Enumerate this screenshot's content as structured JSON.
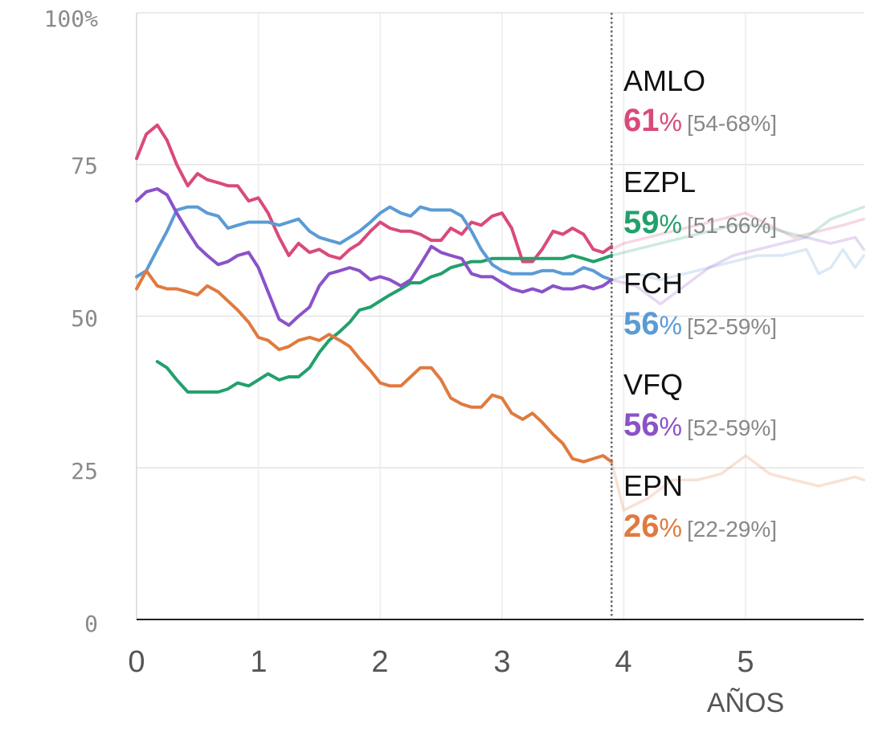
{
  "chart_data": {
    "type": "line",
    "xlabel": "AÑOS",
    "ylabel": "",
    "xlim": [
      0,
      6
    ],
    "ylim": [
      0,
      100
    ],
    "x_ticks": [
      "0",
      "1",
      "2",
      "3",
      "4",
      "5"
    ],
    "y_ticks": [
      "0",
      "25",
      "50",
      "75",
      "100%"
    ],
    "grid": true,
    "divider_x": 3.9,
    "series": [
      {
        "name": "AMLO",
        "color": "#d94a7a",
        "value": "61",
        "unit": "%",
        "range": "[54-68%]",
        "x": [
          0,
          0.08,
          0.17,
          0.25,
          0.33,
          0.42,
          0.5,
          0.58,
          0.67,
          0.75,
          0.83,
          0.92,
          1.0,
          1.08,
          1.17,
          1.25,
          1.33,
          1.42,
          1.5,
          1.58,
          1.67,
          1.75,
          1.83,
          1.92,
          2.0,
          2.08,
          2.17,
          2.25,
          2.33,
          2.42,
          2.5,
          2.58,
          2.67,
          2.75,
          2.83,
          2.92,
          3.0,
          3.08,
          3.17,
          3.25,
          3.33,
          3.42,
          3.5,
          3.58,
          3.67,
          3.75,
          3.83,
          3.9
        ],
        "y": [
          76,
          80,
          81.5,
          79,
          75,
          71.5,
          73.5,
          72.5,
          72,
          71.5,
          71.5,
          69,
          69.5,
          67,
          63,
          60,
          62,
          60.5,
          61,
          60,
          59.5,
          61,
          62,
          64,
          65.5,
          64.5,
          64,
          64,
          63.5,
          62.5,
          62.5,
          64.5,
          63.5,
          65.5,
          65,
          66.5,
          67,
          64.5,
          59,
          59,
          61,
          64,
          63.5,
          64.5,
          63.5,
          61,
          60.5,
          61.5
        ],
        "x_proj": [
          3.9,
          4.0,
          4.2,
          4.4,
          4.6,
          4.8,
          5.0,
          5.2,
          5.4,
          5.6,
          5.8,
          5.97
        ],
        "y_proj": [
          61,
          62,
          63,
          64,
          65,
          66,
          67,
          65,
          63,
          64,
          65,
          66
        ]
      },
      {
        "name": "EZPL",
        "color": "#22a06b",
        "value": "59",
        "unit": "%",
        "range": "[51-66%]",
        "x": [
          0.17,
          0.25,
          0.33,
          0.42,
          0.5,
          0.58,
          0.67,
          0.75,
          0.83,
          0.92,
          1.0,
          1.08,
          1.17,
          1.25,
          1.33,
          1.42,
          1.5,
          1.58,
          1.67,
          1.75,
          1.83,
          1.92,
          2.0,
          2.08,
          2.17,
          2.25,
          2.33,
          2.42,
          2.5,
          2.58,
          2.67,
          2.75,
          2.83,
          2.92,
          3.0,
          3.08,
          3.17,
          3.25,
          3.33,
          3.42,
          3.5,
          3.58,
          3.67,
          3.75,
          3.83,
          3.9
        ],
        "y": [
          42.5,
          41.5,
          39.5,
          37.5,
          37.5,
          37.5,
          37.5,
          38,
          39,
          38.5,
          39.5,
          40.5,
          39.5,
          40,
          40,
          41.5,
          44,
          46,
          47.5,
          49,
          51,
          51.5,
          52.5,
          53.5,
          54.5,
          55.5,
          55.5,
          56.5,
          57,
          58,
          58.5,
          59,
          59,
          59.5,
          59.5,
          59.5,
          59.5,
          59.5,
          59.5,
          59.5,
          59.5,
          60,
          59.5,
          59,
          59.5,
          60
        ],
        "x_proj": [
          3.9,
          4.1,
          4.3,
          4.5,
          4.7,
          4.9,
          5.1,
          5.3,
          5.5,
          5.7,
          5.97
        ],
        "y_proj": [
          60,
          61,
          62,
          63,
          64,
          65,
          65,
          64,
          63,
          66,
          68
        ]
      },
      {
        "name": "FCH",
        "color": "#5b9bd5",
        "value": "56",
        "unit": "%",
        "range": "[52-59%]",
        "x": [
          0,
          0.08,
          0.17,
          0.25,
          0.33,
          0.42,
          0.5,
          0.58,
          0.67,
          0.75,
          0.83,
          0.92,
          1.0,
          1.08,
          1.17,
          1.25,
          1.33,
          1.42,
          1.5,
          1.58,
          1.67,
          1.75,
          1.83,
          1.92,
          2.0,
          2.08,
          2.17,
          2.25,
          2.33,
          2.42,
          2.5,
          2.58,
          2.67,
          2.75,
          2.83,
          2.92,
          3.0,
          3.08,
          3.17,
          3.25,
          3.33,
          3.42,
          3.5,
          3.58,
          3.67,
          3.75,
          3.83,
          3.9
        ],
        "y": [
          56.5,
          57.5,
          61,
          64,
          67.5,
          68,
          68,
          67,
          66.5,
          64.5,
          65,
          65.5,
          65.5,
          65.5,
          65,
          65.5,
          66,
          64,
          63,
          62.5,
          62,
          63,
          64,
          65.5,
          67,
          68,
          67,
          66.5,
          68,
          67.5,
          67.5,
          67.5,
          66.5,
          64,
          61,
          58.5,
          57.5,
          57,
          57,
          57,
          57.5,
          57.5,
          57,
          57,
          58,
          57.5,
          56.5,
          56
        ],
        "x_proj": [
          3.9,
          4.1,
          4.3,
          4.5,
          4.7,
          4.9,
          5.1,
          5.3,
          5.5,
          5.6,
          5.7,
          5.8,
          5.9,
          5.97
        ],
        "y_proj": [
          56,
          57,
          56,
          57,
          58,
          59,
          60,
          60,
          61,
          57,
          58,
          61,
          58,
          60
        ]
      },
      {
        "name": "VFQ",
        "color": "#8a52c8",
        "value": "56",
        "unit": "%",
        "range": "[52-59%]",
        "x": [
          0,
          0.08,
          0.17,
          0.25,
          0.33,
          0.42,
          0.5,
          0.58,
          0.67,
          0.75,
          0.83,
          0.92,
          1.0,
          1.08,
          1.17,
          1.25,
          1.33,
          1.42,
          1.5,
          1.58,
          1.67,
          1.75,
          1.83,
          1.92,
          2.0,
          2.08,
          2.17,
          2.25,
          2.33,
          2.42,
          2.5,
          2.58,
          2.67,
          2.75,
          2.83,
          2.92,
          3.0,
          3.08,
          3.17,
          3.25,
          3.33,
          3.42,
          3.5,
          3.58,
          3.67,
          3.75,
          3.83,
          3.9
        ],
        "y": [
          69,
          70.5,
          71,
          70,
          67,
          64,
          61.5,
          60,
          58.5,
          59,
          60,
          60.5,
          58,
          54,
          49.5,
          48.5,
          50,
          51.5,
          55,
          57,
          57.5,
          58,
          57.5,
          56,
          56.5,
          56,
          55,
          56,
          58.5,
          61.5,
          60.5,
          60,
          59.5,
          57,
          56.5,
          56.5,
          55.5,
          54.5,
          54,
          54.5,
          54,
          55,
          54.5,
          54.5,
          55,
          54.5,
          55,
          56
        ],
        "x_proj": [
          3.9,
          4.1,
          4.3,
          4.5,
          4.7,
          4.9,
          5.1,
          5.3,
          5.5,
          5.7,
          5.9,
          5.97
        ],
        "y_proj": [
          56,
          55,
          52,
          55,
          58,
          60,
          61,
          62,
          63,
          62,
          63,
          61
        ]
      },
      {
        "name": "EPN",
        "color": "#e07a3f",
        "value": "26",
        "unit": "%",
        "range": "[22-29%]",
        "x": [
          0,
          0.08,
          0.17,
          0.25,
          0.33,
          0.42,
          0.5,
          0.58,
          0.67,
          0.75,
          0.83,
          0.92,
          1.0,
          1.08,
          1.17,
          1.25,
          1.33,
          1.42,
          1.5,
          1.58,
          1.67,
          1.75,
          1.83,
          1.92,
          2.0,
          2.08,
          2.17,
          2.25,
          2.33,
          2.42,
          2.5,
          2.58,
          2.67,
          2.75,
          2.83,
          2.92,
          3.0,
          3.08,
          3.17,
          3.25,
          3.33,
          3.42,
          3.5,
          3.58,
          3.67,
          3.75,
          3.83,
          3.9
        ],
        "y": [
          54.5,
          57.5,
          55,
          54.5,
          54.5,
          54,
          53.5,
          55,
          54,
          52.5,
          51,
          49,
          46.5,
          46,
          44.5,
          45,
          46,
          46.5,
          46,
          47,
          46,
          45,
          43,
          41,
          39,
          38.5,
          38.5,
          40,
          41.5,
          41.5,
          39.5,
          36.5,
          35.5,
          35,
          35,
          37,
          36.5,
          34,
          33,
          34,
          32.5,
          30.5,
          29,
          26.5,
          26,
          26.5,
          27,
          26
        ],
        "x_proj": [
          3.9,
          4.0,
          4.2,
          4.4,
          4.6,
          4.8,
          5.0,
          5.2,
          5.4,
          5.6,
          5.8,
          5.9,
          5.97
        ],
        "y_proj": [
          26,
          18,
          20,
          23,
          23,
          24,
          27,
          24,
          23,
          22,
          23,
          23.5,
          23
        ]
      }
    ]
  }
}
